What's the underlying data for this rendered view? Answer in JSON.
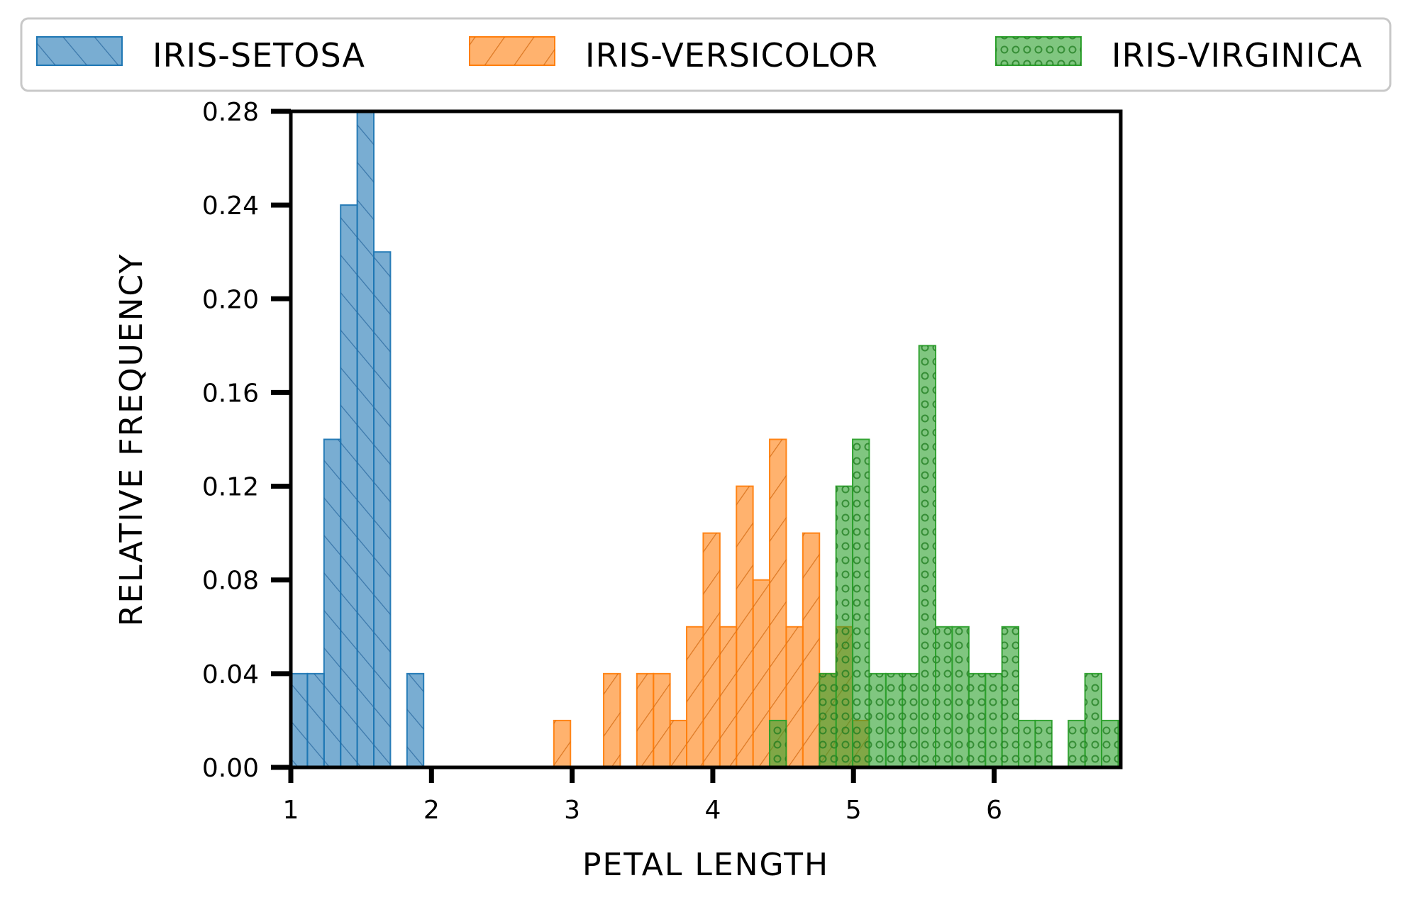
{
  "chart_data": {
    "type": "bar",
    "title": "",
    "xlabel": "PETAL LENGTH",
    "ylabel": "RELATIVE FREQUENCY",
    "xlim": [
      1,
      6.9
    ],
    "ylim": [
      0,
      0.28
    ],
    "xticks": [
      1,
      2,
      3,
      4,
      5,
      6
    ],
    "xtick_labels": [
      "1",
      "2",
      "3",
      "4",
      "5",
      "6"
    ],
    "yticks": [
      0,
      0.04,
      0.08,
      0.12,
      0.16,
      0.2,
      0.24,
      0.28
    ],
    "ytick_labels": [
      "0.00",
      "0.04",
      "0.08",
      "0.12",
      "0.16",
      "0.20",
      "0.24",
      "0.28"
    ],
    "grid": false,
    "legend_position": "top, above plot",
    "bin_width": 0.118,
    "series": [
      {
        "name": "IRIS-SETOSA",
        "color": "#1f77b4",
        "hatch": "diagonal-lines",
        "bins": [
          {
            "x0": 1.0,
            "x1": 1.118,
            "value": 0.04
          },
          {
            "x0": 1.118,
            "x1": 1.236,
            "value": 0.04
          },
          {
            "x0": 1.236,
            "x1": 1.354,
            "value": 0.14
          },
          {
            "x0": 1.354,
            "x1": 1.472,
            "value": 0.24
          },
          {
            "x0": 1.472,
            "x1": 1.59,
            "value": 0.28
          },
          {
            "x0": 1.59,
            "x1": 1.708,
            "value": 0.22
          },
          {
            "x0": 1.826,
            "x1": 1.944,
            "value": 0.04
          }
        ]
      },
      {
        "name": "IRIS-VERSICOLOR",
        "color": "#ff7f0e",
        "hatch": "back-diagonal-lines",
        "bins": [
          {
            "x0": 2.87,
            "x1": 2.988,
            "value": 0.02
          },
          {
            "x0": 3.224,
            "x1": 3.342,
            "value": 0.04
          },
          {
            "x0": 3.46,
            "x1": 3.578,
            "value": 0.04
          },
          {
            "x0": 3.578,
            "x1": 3.696,
            "value": 0.04
          },
          {
            "x0": 3.696,
            "x1": 3.814,
            "value": 0.02
          },
          {
            "x0": 3.814,
            "x1": 3.932,
            "value": 0.06
          },
          {
            "x0": 3.932,
            "x1": 4.05,
            "value": 0.1
          },
          {
            "x0": 4.05,
            "x1": 4.168,
            "value": 0.06
          },
          {
            "x0": 4.168,
            "x1": 4.286,
            "value": 0.12
          },
          {
            "x0": 4.286,
            "x1": 4.404,
            "value": 0.08
          },
          {
            "x0": 4.404,
            "x1": 4.522,
            "value": 0.14
          },
          {
            "x0": 4.522,
            "x1": 4.64,
            "value": 0.06
          },
          {
            "x0": 4.64,
            "x1": 4.758,
            "value": 0.1
          },
          {
            "x0": 4.758,
            "x1": 4.876,
            "value": 0.04
          },
          {
            "x0": 4.876,
            "x1": 4.994,
            "value": 0.06
          },
          {
            "x0": 4.994,
            "x1": 5.112,
            "value": 0.02
          }
        ]
      },
      {
        "name": "IRIS-VIRGINICA",
        "color": "#2ca02c",
        "hatch": "small-circles",
        "bins": [
          {
            "x0": 4.404,
            "x1": 4.522,
            "value": 0.02
          },
          {
            "x0": 4.758,
            "x1": 4.876,
            "value": 0.04
          },
          {
            "x0": 4.876,
            "x1": 4.994,
            "value": 0.12
          },
          {
            "x0": 4.994,
            "x1": 5.112,
            "value": 0.14
          },
          {
            "x0": 5.112,
            "x1": 5.23,
            "value": 0.04
          },
          {
            "x0": 5.23,
            "x1": 5.348,
            "value": 0.04
          },
          {
            "x0": 5.348,
            "x1": 5.466,
            "value": 0.04
          },
          {
            "x0": 5.466,
            "x1": 5.584,
            "value": 0.18
          },
          {
            "x0": 5.584,
            "x1": 5.702,
            "value": 0.06
          },
          {
            "x0": 5.702,
            "x1": 5.82,
            "value": 0.06
          },
          {
            "x0": 5.82,
            "x1": 5.938,
            "value": 0.04
          },
          {
            "x0": 5.938,
            "x1": 6.056,
            "value": 0.04
          },
          {
            "x0": 6.056,
            "x1": 6.174,
            "value": 0.06
          },
          {
            "x0": 6.174,
            "x1": 6.292,
            "value": 0.02
          },
          {
            "x0": 6.292,
            "x1": 6.41,
            "value": 0.02
          },
          {
            "x0": 6.528,
            "x1": 6.646,
            "value": 0.02
          },
          {
            "x0": 6.646,
            "x1": 6.764,
            "value": 0.04
          },
          {
            "x0": 6.764,
            "x1": 6.882,
            "value": 0.02
          }
        ]
      }
    ]
  }
}
